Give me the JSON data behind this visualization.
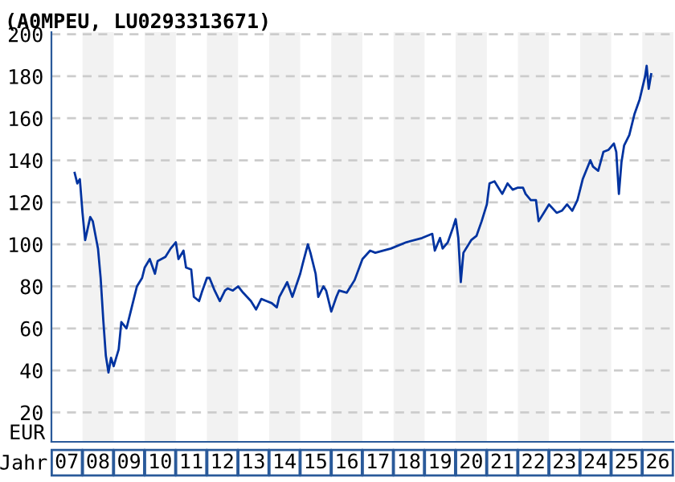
{
  "chart_data": {
    "type": "line",
    "title": "(A0MPEU, LU0293313671)",
    "xlabel": "Jahr",
    "ylabel": "EUR",
    "x": [
      "2007-10",
      "2007-11",
      "2007-12",
      "2008-01",
      "2008-02",
      "2008-04",
      "2008-05",
      "2008-07",
      "2008-08",
      "2008-09",
      "2008-10",
      "2008-11",
      "2008-12",
      "2009-01",
      "2009-03",
      "2009-04",
      "2009-06",
      "2009-08",
      "2009-10",
      "2009-12",
      "2010-01",
      "2010-03",
      "2010-05",
      "2010-06",
      "2010-09",
      "2010-11",
      "2011-01",
      "2011-02",
      "2011-04",
      "2011-05",
      "2011-07",
      "2011-08",
      "2011-10",
      "2011-11",
      "2012-01",
      "2012-02",
      "2012-04",
      "2012-06",
      "2012-08",
      "2012-09",
      "2012-11",
      "2013-01",
      "2013-03",
      "2013-06",
      "2013-08",
      "2013-10",
      "2013-12",
      "2014-02",
      "2014-04",
      "2014-05",
      "2014-08",
      "2014-10",
      "2015-01",
      "2015-02",
      "2015-04",
      "2015-05",
      "2015-07",
      "2015-08",
      "2015-10",
      "2015-11",
      "2016-01",
      "2016-03",
      "2016-04",
      "2016-07",
      "2016-10",
      "2017-01",
      "2017-04",
      "2017-06",
      "2017-12",
      "2018-06",
      "2018-12",
      "2019-04",
      "2019-05",
      "2019-07",
      "2019-08",
      "2019-10",
      "2019-12",
      "2020-01",
      "2020-02",
      "2020-03",
      "2020-04",
      "2020-07",
      "2020-09",
      "2020-11",
      "2021-01",
      "2021-02",
      "2021-04",
      "2021-06",
      "2021-07",
      "2021-09",
      "2021-11",
      "2022-01",
      "2022-03",
      "2022-04",
      "2022-06",
      "2022-08",
      "2022-09",
      "2022-11",
      "2023-01",
      "2023-04",
      "2023-06",
      "2023-08",
      "2023-10",
      "2023-12",
      "2024-02",
      "2024-05",
      "2024-06",
      "2024-08",
      "2024-10",
      "2024-12",
      "2025-02",
      "2025-03",
      "2025-04",
      "2025-05",
      "2025-06",
      "2025-08",
      "2025-10",
      "2025-12",
      "2026-02-03",
      "2026-02-21",
      "2026-03-17",
      "2026-04-15"
    ],
    "series": [
      {
        "color": "#0033a0",
        "values": [
          134,
          129,
          131,
          115,
          102,
          113,
          111,
          98,
          84,
          64,
          47,
          39,
          46,
          42,
          50,
          63,
          60,
          70,
          80,
          84,
          89,
          93,
          86,
          92,
          94,
          98,
          101,
          93,
          97,
          89,
          88,
          75,
          73,
          77,
          84,
          84,
          78,
          73,
          78,
          79,
          78,
          80,
          77,
          73,
          69,
          74,
          73,
          72,
          70,
          75,
          82,
          75,
          86,
          91,
          100,
          96,
          86,
          75,
          80,
          78,
          68,
          75,
          78,
          77,
          83,
          93,
          97,
          96,
          98,
          101,
          103,
          105,
          97,
          103,
          98,
          101,
          108,
          112,
          103,
          82,
          96,
          102,
          104,
          111,
          119,
          129,
          130,
          126,
          124,
          129,
          126,
          127,
          127,
          124,
          121,
          121,
          111,
          115,
          119,
          115,
          116,
          119,
          116,
          121,
          131,
          140,
          137,
          135,
          144,
          145,
          148,
          144,
          124,
          139,
          147,
          152,
          162,
          169,
          180,
          185,
          174,
          181
        ]
      }
    ],
    "xlim": [
      "2007-01",
      "2027-01"
    ],
    "xticks": [
      {
        "value": "2007-07",
        "label": "07"
      },
      {
        "value": "2008-07",
        "label": "08"
      },
      {
        "value": "2009-07",
        "label": "09"
      },
      {
        "value": "2010-07",
        "label": "10"
      },
      {
        "value": "2011-07",
        "label": "11"
      },
      {
        "value": "2012-07",
        "label": "12"
      },
      {
        "value": "2013-07",
        "label": "13"
      },
      {
        "value": "2014-07",
        "label": "14"
      },
      {
        "value": "2015-07",
        "label": "15"
      },
      {
        "value": "2016-07",
        "label": "16"
      },
      {
        "value": "2017-07",
        "label": "17"
      },
      {
        "value": "2018-07",
        "label": "18"
      },
      {
        "value": "2019-07",
        "label": "19"
      },
      {
        "value": "2020-07",
        "label": "20"
      },
      {
        "value": "2021-07",
        "label": "21"
      },
      {
        "value": "2022-07",
        "label": "22"
      },
      {
        "value": "2023-07",
        "label": "23"
      },
      {
        "value": "2024-07",
        "label": "24"
      },
      {
        "value": "2025-07",
        "label": "25"
      },
      {
        "value": "2026-07",
        "label": "26"
      }
    ],
    "ylim": [
      6,
      201
    ],
    "yticks": [
      20,
      40,
      60,
      80,
      100,
      120,
      140,
      160,
      180,
      200
    ],
    "grid": "y",
    "line_style": "solid",
    "marker": "none",
    "bands": [
      {
        "axis": "x",
        "from": "2008",
        "to": "2009",
        "color": "#f2f2f2"
      },
      {
        "axis": "x",
        "from": "2010",
        "to": "2011",
        "color": "#f2f2f2"
      },
      {
        "axis": "x",
        "from": "2012",
        "to": "2013",
        "color": "#f2f2f2"
      },
      {
        "axis": "x",
        "from": "2014",
        "to": "2015",
        "color": "#f2f2f2"
      },
      {
        "axis": "x",
        "from": "2016",
        "to": "2017",
        "color": "#f2f2f2"
      },
      {
        "axis": "x",
        "from": "2018",
        "to": "2019",
        "color": "#f2f2f2"
      },
      {
        "axis": "x",
        "from": "2020",
        "to": "2021",
        "color": "#f2f2f2"
      },
      {
        "axis": "x",
        "from": "2022",
        "to": "2023",
        "color": "#f2f2f2"
      },
      {
        "axis": "x",
        "from": "2024",
        "to": "2025",
        "color": "#f2f2f2"
      },
      {
        "axis": "x",
        "from": "2026",
        "to": "2027",
        "color": "#f2f2f2"
      }
    ]
  }
}
